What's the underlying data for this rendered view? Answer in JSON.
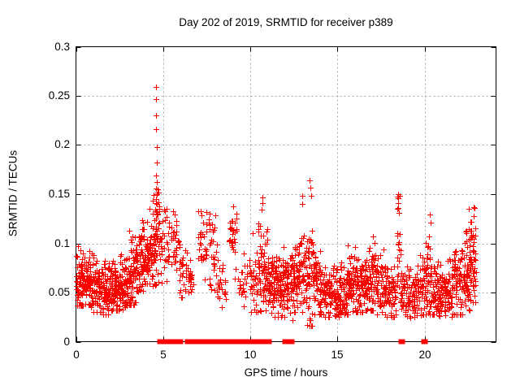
{
  "chart_data": {
    "type": "scatter",
    "title": "Day 202 of 2019, SRMTID for receiver p389",
    "xlabel": "GPS time / hours",
    "ylabel": "SRMTID / TECUs",
    "xlim": [
      0,
      24.1
    ],
    "ylim": [
      0,
      0.3
    ],
    "xticks": [
      0,
      5,
      10,
      15,
      20
    ],
    "xtick_labels": [
      "0",
      "5",
      "10",
      "15",
      "20"
    ],
    "yticks": [
      0,
      0.05,
      0.1,
      0.15,
      0.2,
      0.25,
      0.3
    ],
    "ytick_labels": [
      "0",
      "0.05",
      "0.1",
      "0.15",
      "0.2",
      "0.25",
      "0.3"
    ],
    "grid": true,
    "legend": "none",
    "marker": "plus",
    "marker_color": "#ff0000",
    "grid_color": "#a8a8a8",
    "axis_color": "#000000",
    "background_color": "#ffffff",
    "max_value": 0.259,
    "seed": 42,
    "bands": [
      [
        0.0,
        0.5,
        70,
        0.063,
        0.016,
        0.037,
        0.115
      ],
      [
        0.5,
        1.0,
        70,
        0.058,
        0.014,
        0.035,
        0.105
      ],
      [
        1.0,
        1.5,
        70,
        0.055,
        0.013,
        0.03,
        0.1
      ],
      [
        1.5,
        2.0,
        70,
        0.052,
        0.013,
        0.028,
        0.095
      ],
      [
        2.0,
        2.5,
        70,
        0.055,
        0.013,
        0.032,
        0.1
      ],
      [
        2.5,
        3.0,
        70,
        0.058,
        0.015,
        0.033,
        0.105
      ],
      [
        3.0,
        3.4,
        55,
        0.068,
        0.018,
        0.038,
        0.125
      ],
      [
        3.4,
        3.8,
        55,
        0.078,
        0.02,
        0.04,
        0.142
      ],
      [
        3.8,
        4.2,
        55,
        0.085,
        0.02,
        0.045,
        0.145
      ],
      [
        4.2,
        4.55,
        50,
        0.095,
        0.022,
        0.05,
        0.15
      ],
      [
        4.55,
        4.8,
        45,
        0.112,
        0.025,
        0.058,
        0.155
      ],
      [
        4.8,
        5.0,
        12,
        0.09,
        0.02,
        0.055,
        0.13
      ],
      [
        5.05,
        5.35,
        22,
        0.095,
        0.02,
        0.06,
        0.135
      ],
      [
        5.45,
        5.95,
        30,
        0.098,
        0.018,
        0.055,
        0.133
      ],
      [
        5.95,
        6.4,
        25,
        0.068,
        0.014,
        0.045,
        0.1
      ],
      [
        6.4,
        6.75,
        20,
        0.062,
        0.013,
        0.042,
        0.095
      ],
      [
        7.0,
        7.55,
        30,
        0.1,
        0.018,
        0.06,
        0.133
      ],
      [
        7.6,
        8.1,
        30,
        0.092,
        0.02,
        0.05,
        0.13
      ],
      [
        8.1,
        8.6,
        25,
        0.058,
        0.014,
        0.035,
        0.09
      ],
      [
        8.75,
        9.25,
        30,
        0.1,
        0.02,
        0.055,
        0.138
      ],
      [
        9.3,
        9.8,
        25,
        0.058,
        0.014,
        0.035,
        0.09
      ],
      [
        9.95,
        10.45,
        35,
        0.068,
        0.02,
        0.03,
        0.115
      ],
      [
        10.45,
        11.0,
        65,
        0.072,
        0.022,
        0.03,
        0.145
      ],
      [
        11.0,
        11.5,
        65,
        0.06,
        0.018,
        0.025,
        0.12
      ],
      [
        11.5,
        12.0,
        65,
        0.055,
        0.015,
        0.025,
        0.1
      ],
      [
        12.0,
        12.5,
        65,
        0.058,
        0.016,
        0.028,
        0.105
      ],
      [
        12.5,
        13.0,
        65,
        0.065,
        0.02,
        0.03,
        0.145
      ],
      [
        13.0,
        13.6,
        70,
        0.068,
        0.025,
        0.016,
        0.15
      ],
      [
        13.6,
        14.2,
        70,
        0.058,
        0.016,
        0.028,
        0.11
      ],
      [
        14.2,
        14.8,
        70,
        0.052,
        0.014,
        0.025,
        0.095
      ],
      [
        14.8,
        15.4,
        70,
        0.05,
        0.013,
        0.025,
        0.09
      ],
      [
        15.4,
        16.0,
        70,
        0.055,
        0.015,
        0.028,
        0.1
      ],
      [
        16.0,
        16.6,
        70,
        0.06,
        0.017,
        0.03,
        0.115
      ],
      [
        16.6,
        17.2,
        70,
        0.065,
        0.018,
        0.032,
        0.12
      ],
      [
        17.2,
        17.8,
        65,
        0.055,
        0.016,
        0.028,
        0.105
      ],
      [
        17.8,
        18.4,
        60,
        0.05,
        0.015,
        0.025,
        0.1
      ],
      [
        18.4,
        18.65,
        25,
        0.085,
        0.03,
        0.04,
        0.15
      ],
      [
        18.65,
        19.3,
        60,
        0.048,
        0.014,
        0.022,
        0.09
      ],
      [
        19.3,
        19.9,
        60,
        0.052,
        0.015,
        0.025,
        0.1
      ],
      [
        19.9,
        20.5,
        65,
        0.06,
        0.02,
        0.028,
        0.13
      ],
      [
        20.5,
        21.1,
        65,
        0.052,
        0.015,
        0.025,
        0.1
      ],
      [
        21.1,
        21.6,
        60,
        0.05,
        0.014,
        0.025,
        0.095
      ],
      [
        21.6,
        22.2,
        70,
        0.06,
        0.02,
        0.028,
        0.124
      ],
      [
        22.2,
        22.65,
        60,
        0.07,
        0.022,
        0.032,
        0.13
      ],
      [
        22.6,
        22.95,
        45,
        0.085,
        0.022,
        0.04,
        0.137
      ]
    ],
    "columns": [
      {
        "x": 4.6,
        "ys": [
          0.259,
          0.247,
          0.23,
          0.216,
          0.198,
          0.182,
          0.169,
          0.162,
          0.156,
          0.15,
          0.145,
          0.14
        ]
      },
      {
        "x": 10.68,
        "ys": [
          0.147,
          0.141,
          0.134
        ]
      },
      {
        "x": 12.95,
        "ys": [
          0.148,
          0.14
        ]
      },
      {
        "x": 13.45,
        "ys": [
          0.164,
          0.157,
          0.148
        ]
      },
      {
        "x": 18.5,
        "ys": [
          0.15,
          0.146,
          0.141,
          0.136,
          0.131
        ]
      },
      {
        "x": 20.35,
        "ys": [
          0.129,
          0.121
        ]
      },
      {
        "x": 22.56,
        "ys": [
          0.135
        ]
      },
      {
        "x": 22.85,
        "ys": [
          0.136,
          0.128
        ]
      },
      {
        "x": 1.52,
        "ys": [
          0.028
        ]
      },
      {
        "x": 12.42,
        "ys": [
          0.022
        ]
      },
      {
        "x": 13.32,
        "ys": [
          0.017
        ]
      },
      {
        "x": 19.15,
        "ys": [
          0.024
        ]
      }
    ],
    "zero_runs": [
      [
        4.79,
        4.98
      ],
      [
        5.16,
        5.34
      ],
      [
        5.49,
        5.8
      ],
      [
        5.92,
        6.04
      ],
      [
        6.37,
        6.64
      ],
      [
        6.79,
        7.76
      ],
      [
        7.91,
        8.22
      ],
      [
        8.37,
        8.58
      ],
      [
        8.84,
        8.97
      ],
      [
        9.21,
        9.43
      ],
      [
        9.62,
        9.71
      ],
      [
        9.86,
        10.08
      ],
      [
        10.23,
        10.5
      ],
      [
        10.68,
        10.86
      ],
      [
        10.98,
        11.14
      ],
      [
        11.98,
        12.3
      ],
      [
        12.36,
        12.4
      ],
      [
        18.62,
        18.76
      ],
      [
        19.93,
        20.06
      ]
    ]
  }
}
